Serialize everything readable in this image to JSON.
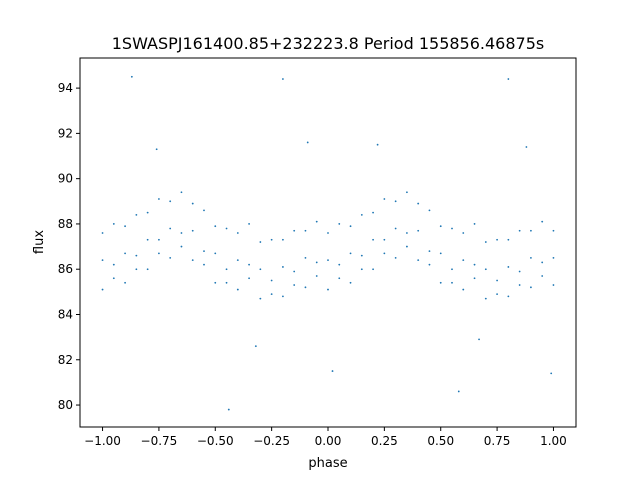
{
  "chart_data": {
    "type": "scatter",
    "title": "1SWASPJ161400.85+232223.8 Period 155856.46875s",
    "xlabel": "phase",
    "ylabel": "flux",
    "xlim": [
      -1.1,
      1.1
    ],
    "ylim": [
      79.03,
      95.33
    ],
    "xticks": [
      -1.0,
      -0.75,
      -0.5,
      -0.25,
      0.0,
      0.25,
      0.5,
      0.75,
      1.0
    ],
    "xtick_labels": [
      "−1.00",
      "−0.75",
      "−0.50",
      "−0.25",
      "0.00",
      "0.25",
      "0.50",
      "0.75",
      "1.00"
    ],
    "yticks": [
      80,
      82,
      84,
      86,
      88,
      90,
      92,
      94
    ],
    "ytick_labels": [
      "80",
      "82",
      "84",
      "86",
      "88",
      "90",
      "92",
      "94"
    ],
    "grid": false,
    "marker_color": "#1f77b4",
    "points": [
      [
        -1.0,
        85.1
      ],
      [
        -1.0,
        86.4
      ],
      [
        -1.0,
        87.6
      ],
      [
        -0.95,
        85.6
      ],
      [
        -0.95,
        86.2
      ],
      [
        -0.95,
        88.0
      ],
      [
        -0.9,
        85.4
      ],
      [
        -0.9,
        86.7
      ],
      [
        -0.9,
        87.9
      ],
      [
        -0.85,
        86.0
      ],
      [
        -0.85,
        86.6
      ],
      [
        -0.85,
        88.4
      ],
      [
        -0.8,
        86.0
      ],
      [
        -0.8,
        87.3
      ],
      [
        -0.8,
        88.5
      ],
      [
        -0.75,
        86.7
      ],
      [
        -0.75,
        87.3
      ],
      [
        -0.75,
        89.1
      ],
      [
        -0.7,
        86.5
      ],
      [
        -0.7,
        87.8
      ],
      [
        -0.7,
        89.0
      ],
      [
        -0.65,
        87.0
      ],
      [
        -0.65,
        87.6
      ],
      [
        -0.65,
        89.4
      ],
      [
        -0.6,
        86.4
      ],
      [
        -0.6,
        87.7
      ],
      [
        -0.6,
        88.9
      ],
      [
        -0.55,
        86.2
      ],
      [
        -0.55,
        86.8
      ],
      [
        -0.55,
        88.6
      ],
      [
        -0.5,
        85.4
      ],
      [
        -0.5,
        86.7
      ],
      [
        -0.5,
        87.9
      ],
      [
        -0.45,
        85.4
      ],
      [
        -0.45,
        86.0
      ],
      [
        -0.45,
        87.8
      ],
      [
        -0.4,
        85.1
      ],
      [
        -0.4,
        86.4
      ],
      [
        -0.4,
        87.6
      ],
      [
        -0.35,
        85.6
      ],
      [
        -0.35,
        86.2
      ],
      [
        -0.35,
        88.0
      ],
      [
        -0.3,
        84.7
      ],
      [
        -0.3,
        86.0
      ],
      [
        -0.3,
        87.2
      ],
      [
        -0.25,
        84.9
      ],
      [
        -0.25,
        85.5
      ],
      [
        -0.25,
        87.3
      ],
      [
        -0.2,
        84.8
      ],
      [
        -0.2,
        86.1
      ],
      [
        -0.2,
        87.3
      ],
      [
        -0.15,
        85.3
      ],
      [
        -0.15,
        85.9
      ],
      [
        -0.15,
        87.7
      ],
      [
        -0.1,
        85.2
      ],
      [
        -0.1,
        86.5
      ],
      [
        -0.1,
        87.7
      ],
      [
        -0.05,
        85.7
      ],
      [
        -0.05,
        86.3
      ],
      [
        -0.05,
        88.1
      ],
      [
        0.0,
        85.1
      ],
      [
        0.0,
        86.4
      ],
      [
        0.0,
        87.6
      ],
      [
        0.05,
        85.6
      ],
      [
        0.05,
        86.2
      ],
      [
        0.05,
        88.0
      ],
      [
        0.1,
        85.4
      ],
      [
        0.1,
        86.7
      ],
      [
        0.1,
        87.9
      ],
      [
        0.15,
        86.0
      ],
      [
        0.15,
        86.6
      ],
      [
        0.15,
        88.4
      ],
      [
        0.2,
        86.0
      ],
      [
        0.2,
        87.3
      ],
      [
        0.2,
        88.5
      ],
      [
        0.25,
        86.7
      ],
      [
        0.25,
        87.3
      ],
      [
        0.25,
        89.1
      ],
      [
        0.3,
        86.5
      ],
      [
        0.3,
        87.8
      ],
      [
        0.3,
        89.0
      ],
      [
        0.35,
        87.0
      ],
      [
        0.35,
        87.6
      ],
      [
        0.35,
        89.4
      ],
      [
        0.4,
        86.4
      ],
      [
        0.4,
        87.7
      ],
      [
        0.4,
        88.9
      ],
      [
        0.45,
        86.2
      ],
      [
        0.45,
        86.8
      ],
      [
        0.45,
        88.6
      ],
      [
        0.5,
        85.4
      ],
      [
        0.5,
        86.7
      ],
      [
        0.5,
        87.9
      ],
      [
        0.55,
        85.4
      ],
      [
        0.55,
        86.0
      ],
      [
        0.55,
        87.8
      ],
      [
        0.6,
        85.1
      ],
      [
        0.6,
        86.4
      ],
      [
        0.6,
        87.6
      ],
      [
        0.65,
        85.6
      ],
      [
        0.65,
        86.2
      ],
      [
        0.65,
        88.0
      ],
      [
        0.7,
        84.7
      ],
      [
        0.7,
        86.0
      ],
      [
        0.7,
        87.2
      ],
      [
        0.75,
        84.9
      ],
      [
        0.75,
        85.5
      ],
      [
        0.75,
        87.3
      ],
      [
        0.8,
        84.8
      ],
      [
        0.8,
        86.1
      ],
      [
        0.8,
        87.3
      ],
      [
        0.85,
        85.3
      ],
      [
        0.85,
        85.9
      ],
      [
        0.85,
        87.7
      ],
      [
        0.9,
        85.2
      ],
      [
        0.9,
        86.5
      ],
      [
        0.9,
        87.7
      ],
      [
        0.95,
        85.7
      ],
      [
        0.95,
        86.3
      ],
      [
        0.95,
        88.1
      ],
      [
        1.0,
        85.3
      ],
      [
        1.0,
        86.5
      ],
      [
        1.0,
        87.7
      ],
      [
        -0.87,
        94.5
      ],
      [
        -0.2,
        94.4
      ],
      [
        0.8,
        94.4
      ],
      [
        -0.44,
        79.8
      ],
      [
        0.58,
        80.6
      ],
      [
        -0.32,
        82.6
      ],
      [
        0.67,
        82.9
      ],
      [
        0.02,
        81.5
      ],
      [
        0.99,
        81.4
      ],
      [
        -0.09,
        91.6
      ],
      [
        0.88,
        91.4
      ],
      [
        0.22,
        91.5
      ],
      [
        -0.76,
        91.3
      ]
    ]
  }
}
